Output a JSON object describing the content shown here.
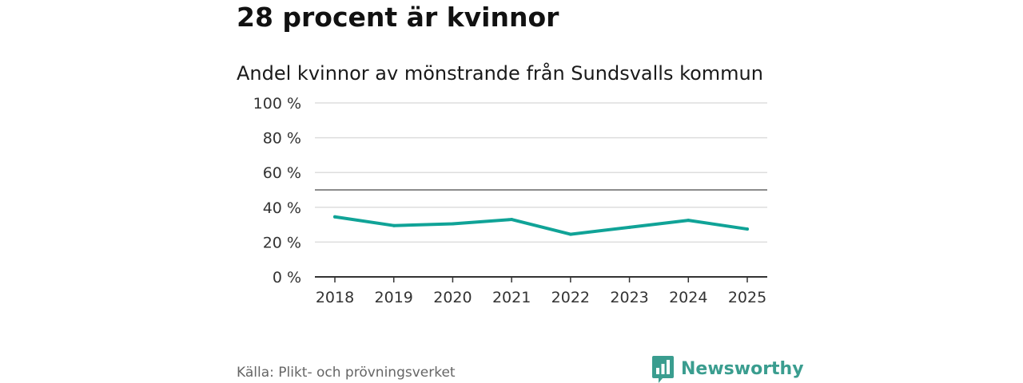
{
  "headline": "28 procent är kvinnor",
  "source": "Källa: Plikt- och prövningsverket",
  "brand": {
    "name": "Newsworthy",
    "icon": "newsworthy-logo-icon",
    "color": "#3a9d8f"
  },
  "colors": {
    "line": "#10a397",
    "grid": "#dddddd",
    "reference": "#666666",
    "axis": "#333333"
  },
  "chart_data": {
    "type": "line",
    "title": "Andel kvinnor av mönstrande från Sundsvalls kommun",
    "xlabel": "",
    "ylabel": "",
    "x": [
      "2018",
      "2019",
      "2020",
      "2021",
      "2022",
      "2023",
      "2024",
      "2025"
    ],
    "series": [
      {
        "name": "Andel kvinnor",
        "values": [
          34.5,
          29.5,
          30.5,
          33.0,
          24.5,
          28.5,
          32.5,
          27.5
        ]
      }
    ],
    "ylim": [
      0,
      100
    ],
    "yticks": [
      0,
      20,
      40,
      60,
      80,
      100
    ],
    "ytick_labels": [
      "0 %",
      "20 %",
      "40 %",
      "60 %",
      "80 %",
      "100 %"
    ],
    "reference_line": 50,
    "grid": true,
    "legend": "none"
  }
}
